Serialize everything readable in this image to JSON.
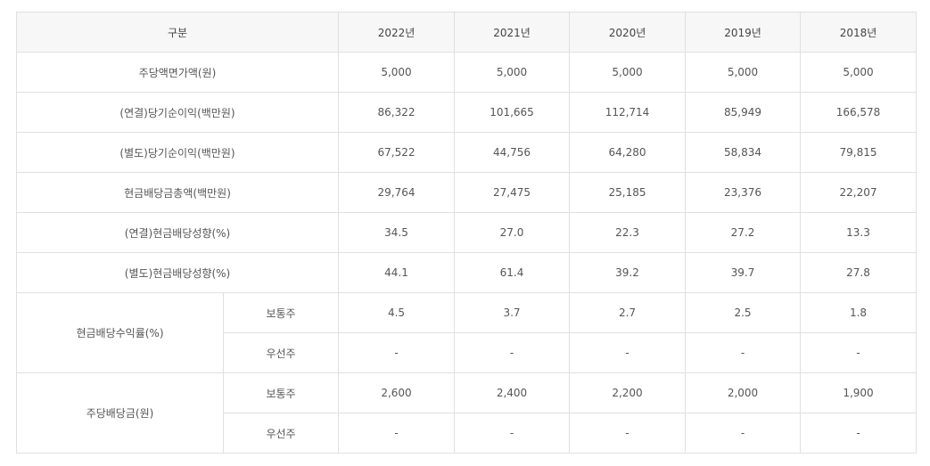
{
  "table": {
    "header": {
      "category": "구분",
      "years": [
        "2022년",
        "2021년",
        "2020년",
        "2019년",
        "2018년"
      ]
    },
    "rows": [
      {
        "label": "주당액면가액(원)",
        "values": [
          "5,000",
          "5,000",
          "5,000",
          "5,000",
          "5,000"
        ]
      },
      {
        "label": "(연결)당기순이익(백만원)",
        "values": [
          "86,322",
          "101,665",
          "112,714",
          "85,949",
          "166,578"
        ]
      },
      {
        "label": "(별도)당기순이익(백만원)",
        "values": [
          "67,522",
          "44,756",
          "64,280",
          "58,834",
          "79,815"
        ]
      },
      {
        "label": "현금배당금총액(백만원)",
        "values": [
          "29,764",
          "27,475",
          "25,185",
          "23,376",
          "22,207"
        ]
      },
      {
        "label": "(연결)현금배당성향(%)",
        "values": [
          "34.5",
          "27.0",
          "22.3",
          "27.2",
          "13.3"
        ]
      },
      {
        "label": "(별도)현금배당성향(%)",
        "values": [
          "44.1",
          "61.4",
          "39.2",
          "39.7",
          "27.8"
        ]
      }
    ],
    "groups": [
      {
        "label": "현금배당수익률(%)",
        "subrows": [
          {
            "label": "보통주",
            "values": [
              "4.5",
              "3.7",
              "2.7",
              "2.5",
              "1.8"
            ]
          },
          {
            "label": "우선주",
            "values": [
              "-",
              "-",
              "-",
              "-",
              "-"
            ]
          }
        ]
      },
      {
        "label": "주당배당금(원)",
        "subrows": [
          {
            "label": "보통주",
            "values": [
              "2,600",
              "2,400",
              "2,200",
              "2,000",
              "1,900"
            ]
          },
          {
            "label": "우선주",
            "values": [
              "-",
              "-",
              "-",
              "-",
              "-"
            ]
          }
        ]
      }
    ]
  }
}
